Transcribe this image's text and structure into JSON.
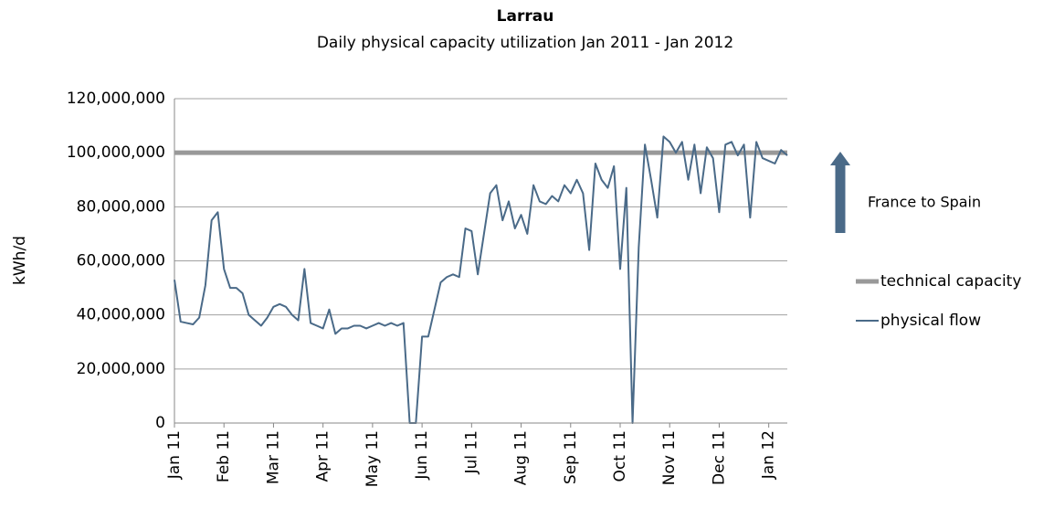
{
  "chart_data": {
    "type": "line",
    "title": "Larrau",
    "subtitle": "Daily physical capacity utilization Jan 2011 - Jan 2012",
    "y_label": "kWh/d",
    "annotation": "France to Spain",
    "categories": [
      "Jan 11",
      null,
      null,
      null,
      null,
      null,
      null,
      null,
      "Feb 11",
      null,
      null,
      null,
      null,
      null,
      null,
      null,
      "Mar 11",
      null,
      null,
      null,
      null,
      null,
      null,
      null,
      "Apr 11",
      null,
      null,
      null,
      null,
      null,
      null,
      null,
      "May 11",
      null,
      null,
      null,
      null,
      null,
      null,
      null,
      "Jun 11",
      null,
      null,
      null,
      null,
      null,
      null,
      null,
      "Jul 11",
      null,
      null,
      null,
      null,
      null,
      null,
      null,
      "Aug 11",
      null,
      null,
      null,
      null,
      null,
      null,
      null,
      "Sep 11",
      null,
      null,
      null,
      null,
      null,
      null,
      null,
      "Oct 11",
      null,
      null,
      null,
      null,
      null,
      null,
      null,
      "Nov 11",
      null,
      null,
      null,
      null,
      null,
      null,
      null,
      "Dec 11",
      null,
      null,
      null,
      null,
      null,
      null,
      null,
      "Jan 12",
      null,
      null,
      null
    ],
    "series": [
      {
        "name": "technical capacity",
        "color": "#999999",
        "width": 5,
        "values": [
          100000000,
          100000000,
          100000000,
          100000000,
          100000000,
          100000000,
          100000000,
          100000000,
          100000000,
          100000000,
          100000000,
          100000000,
          100000000,
          100000000,
          100000000,
          100000000,
          100000000,
          100000000,
          100000000,
          100000000,
          100000000,
          100000000,
          100000000,
          100000000,
          100000000,
          100000000,
          100000000,
          100000000,
          100000000,
          100000000,
          100000000,
          100000000,
          100000000,
          100000000,
          100000000,
          100000000,
          100000000,
          100000000,
          100000000,
          100000000,
          100000000,
          100000000,
          100000000,
          100000000,
          100000000,
          100000000,
          100000000,
          100000000,
          100000000,
          100000000,
          100000000,
          100000000,
          100000000,
          100000000,
          100000000,
          100000000,
          100000000,
          100000000,
          100000000,
          100000000,
          100000000,
          100000000,
          100000000,
          100000000,
          100000000,
          100000000,
          100000000,
          100000000,
          100000000,
          100000000,
          100000000,
          100000000,
          100000000,
          100000000,
          100000000,
          100000000,
          100000000,
          100000000,
          100000000,
          100000000,
          100000000,
          100000000,
          100000000,
          100000000,
          100000000,
          100000000,
          100000000,
          100000000,
          100000000,
          100000000,
          100000000,
          100000000,
          100000000,
          100000000,
          100000000,
          100000000,
          100000000,
          100000000,
          100000000,
          100000000
        ]
      },
      {
        "name": "physical flow",
        "color": "#4a6a88",
        "width": 2,
        "values": [
          53000000,
          37500000,
          37000000,
          36500000,
          39000000,
          51000000,
          75000000,
          78000000,
          57000000,
          50000000,
          50000000,
          48000000,
          40000000,
          38000000,
          36000000,
          39000000,
          43000000,
          44000000,
          43000000,
          40000000,
          38000000,
          57000000,
          37000000,
          36000000,
          35000000,
          42000000,
          33000000,
          35000000,
          35000000,
          36000000,
          36000000,
          35000000,
          36000000,
          37000000,
          36000000,
          37000000,
          36000000,
          37000000,
          0,
          0,
          32000000,
          32000000,
          42000000,
          52000000,
          54000000,
          55000000,
          54000000,
          72000000,
          71000000,
          55000000,
          70000000,
          85000000,
          88000000,
          75000000,
          82000000,
          72000000,
          77000000,
          70000000,
          88000000,
          82000000,
          81000000,
          84000000,
          82000000,
          88000000,
          85000000,
          90000000,
          85000000,
          64000000,
          96000000,
          90000000,
          87000000,
          95000000,
          57000000,
          87000000,
          0,
          65000000,
          103000000,
          90000000,
          76000000,
          106000000,
          104000000,
          100000000,
          104000000,
          90000000,
          103000000,
          85000000,
          102000000,
          98000000,
          78000000,
          103000000,
          104000000,
          99000000,
          103000000,
          76000000,
          104000000,
          98000000,
          97000000,
          96000000,
          101000000,
          99000000
        ]
      }
    ],
    "ylim": [
      0,
      120000000
    ],
    "yticks": [
      0,
      {
        "value": 20000000,
        "label": "20,000,000"
      },
      {
        "value": 40000000,
        "label": "40,000,000"
      },
      {
        "value": 60000000,
        "label": "60,000,000"
      },
      {
        "value": 80000000,
        "label": "80,000,000"
      },
      {
        "value": 100000000,
        "label": "100,000,000"
      },
      {
        "value": 120000000,
        "label": "120,000,000"
      }
    ],
    "grid": true,
    "legend": "right"
  }
}
